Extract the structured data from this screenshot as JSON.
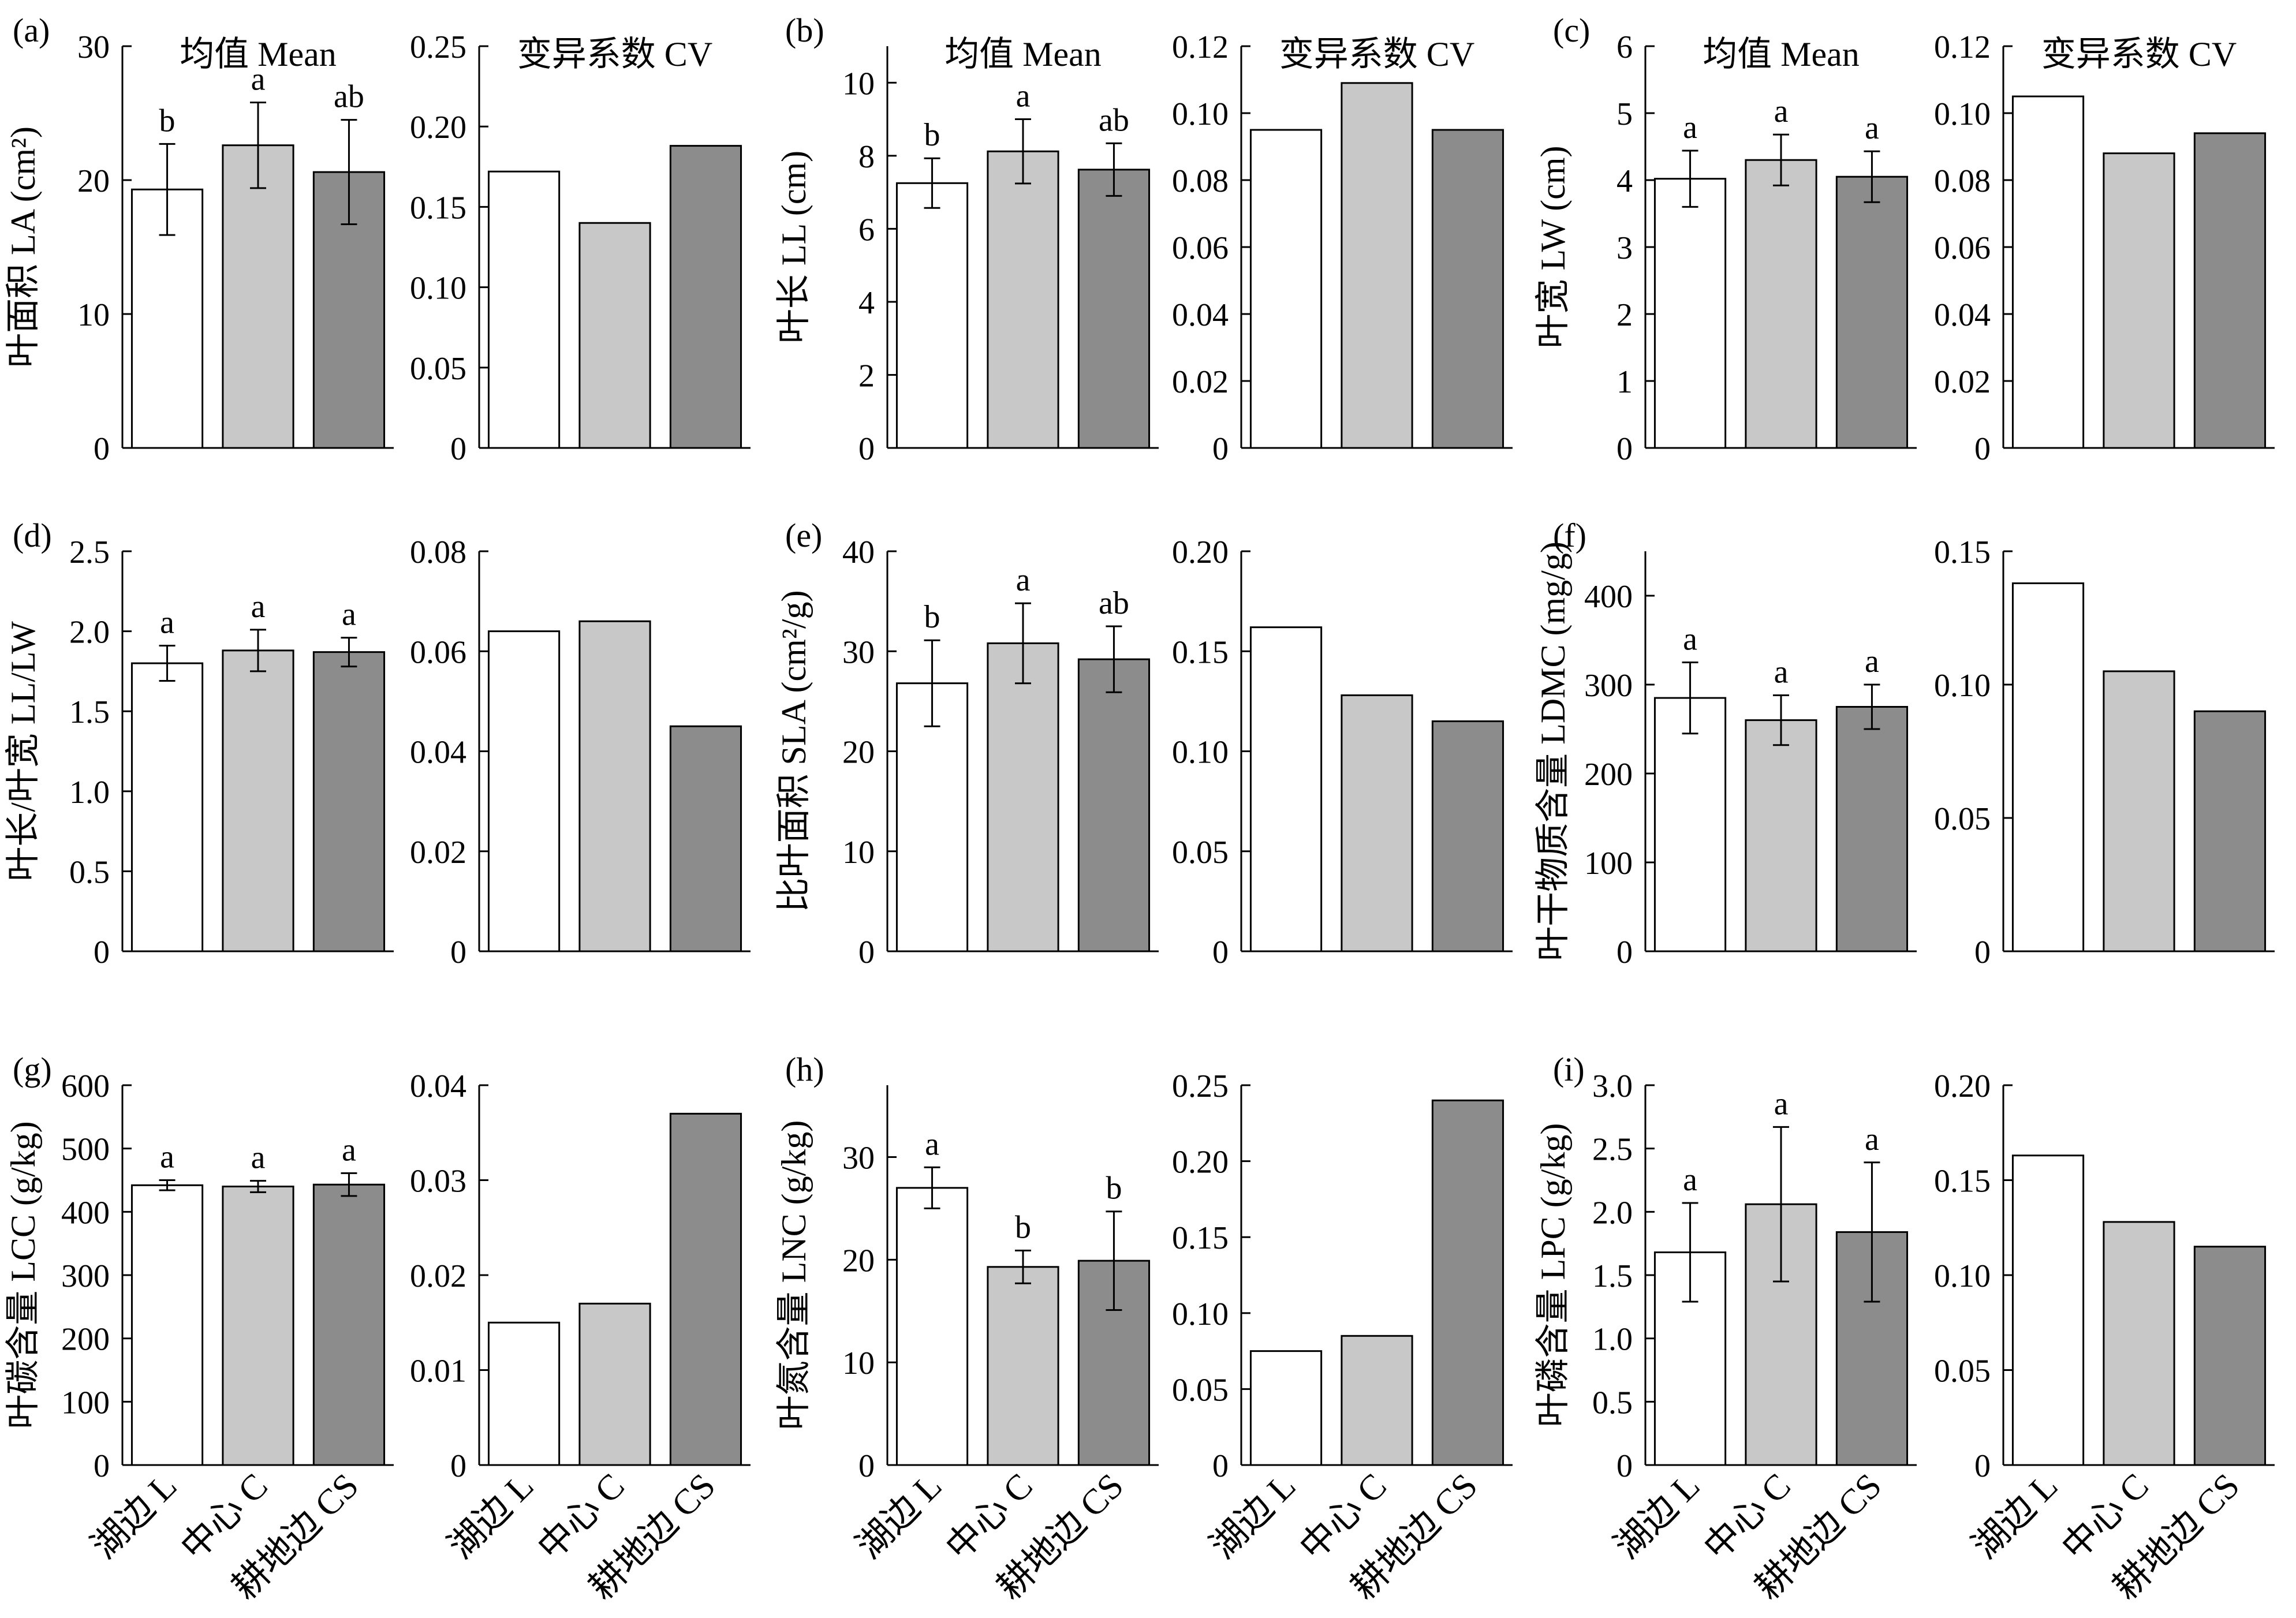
{
  "figure": {
    "colors": {
      "L": "#ffffff",
      "C": "#c8c8c8",
      "CS": "#8c8c8c",
      "axis": "#000000"
    }
  },
  "chart_data": [
    {
      "panel": "(a)",
      "type": "bar",
      "ylabel": "叶面积 LA (cm²)",
      "categories": [
        "湖边 L",
        "中心 C",
        "耕地边 CS"
      ],
      "mean": {
        "title": "均值 Mean",
        "ylim": [
          0,
          30
        ],
        "yticks": [
          0,
          10,
          20,
          30
        ],
        "values": [
          19.3,
          22.6,
          20.6
        ],
        "errors": [
          3.4,
          3.2,
          3.9
        ],
        "letters": [
          "b",
          "a",
          "ab"
        ]
      },
      "cv": {
        "title": "变异系数 CV",
        "ylim": [
          0,
          0.25
        ],
        "yticks": [
          0,
          0.05,
          0.1,
          0.15,
          0.2,
          0.25
        ],
        "values": [
          0.172,
          0.14,
          0.188
        ]
      }
    },
    {
      "panel": "(b)",
      "type": "bar",
      "ylabel": "叶长 LL (cm)",
      "categories": [
        "湖边 L",
        "中心 C",
        "耕地边 CS"
      ],
      "mean": {
        "title": "均值 Mean",
        "ylim": [
          0,
          11
        ],
        "yticks": [
          0,
          2,
          4,
          6,
          8,
          10
        ],
        "values": [
          7.25,
          8.12,
          7.62
        ],
        "errors": [
          0.68,
          0.88,
          0.72
        ],
        "letters": [
          "b",
          "a",
          "ab"
        ]
      },
      "cv": {
        "title": "变异系数 CV",
        "ylim": [
          0,
          0.12
        ],
        "yticks": [
          0,
          0.02,
          0.04,
          0.06,
          0.08,
          0.1,
          0.12
        ],
        "values": [
          0.095,
          0.109,
          0.095
        ]
      }
    },
    {
      "panel": "(c)",
      "type": "bar",
      "ylabel": "叶宽 LW (cm)",
      "categories": [
        "湖边 L",
        "中心 C",
        "耕地边 CS"
      ],
      "mean": {
        "title": "均值 Mean",
        "ylim": [
          0,
          6
        ],
        "yticks": [
          0,
          1,
          2,
          3,
          4,
          5,
          6
        ],
        "values": [
          4.02,
          4.3,
          4.05
        ],
        "errors": [
          0.42,
          0.38,
          0.38
        ],
        "letters": [
          "a",
          "a",
          "a"
        ]
      },
      "cv": {
        "title": "变异系数 CV",
        "ylim": [
          0,
          0.12
        ],
        "yticks": [
          0,
          0.02,
          0.04,
          0.06,
          0.08,
          0.1,
          0.12
        ],
        "values": [
          0.105,
          0.088,
          0.094
        ]
      }
    },
    {
      "panel": "(d)",
      "type": "bar",
      "ylabel": "叶长/叶宽 LL/LW",
      "categories": [
        "湖边 L",
        "中心 C",
        "耕地边 CS"
      ],
      "mean": {
        "title": "",
        "ylim": [
          0,
          2.5
        ],
        "yticks": [
          0,
          0.5,
          1.0,
          1.5,
          2.0,
          2.5
        ],
        "values": [
          1.8,
          1.88,
          1.87
        ],
        "errors": [
          0.11,
          0.13,
          0.09
        ],
        "letters": [
          "a",
          "a",
          "a"
        ]
      },
      "cv": {
        "title": "",
        "ylim": [
          0,
          0.08
        ],
        "yticks": [
          0,
          0.02,
          0.04,
          0.06,
          0.08
        ],
        "values": [
          0.064,
          0.066,
          0.045
        ]
      }
    },
    {
      "panel": "(e)",
      "type": "bar",
      "ylabel": "比叶面积 SLA (cm²/g)",
      "categories": [
        "湖边 L",
        "中心 C",
        "耕地边 CS"
      ],
      "mean": {
        "title": "",
        "ylim": [
          0,
          40
        ],
        "yticks": [
          0,
          10,
          20,
          30,
          40
        ],
        "values": [
          26.8,
          30.8,
          29.2
        ],
        "errors": [
          4.3,
          4.0,
          3.3
        ],
        "letters": [
          "b",
          "a",
          "ab"
        ]
      },
      "cv": {
        "title": "",
        "ylim": [
          0,
          0.2
        ],
        "yticks": [
          0,
          0.05,
          0.1,
          0.15,
          0.2
        ],
        "values": [
          0.162,
          0.128,
          0.115
        ]
      }
    },
    {
      "panel": "(f)",
      "type": "bar",
      "ylabel": "叶干物质含量 LDMC (mg/g)",
      "categories": [
        "湖边 L",
        "中心 C",
        "耕地边 CS"
      ],
      "mean": {
        "title": "",
        "ylim": [
          0,
          450
        ],
        "yticks": [
          0,
          100,
          200,
          300,
          400
        ],
        "values": [
          285,
          260,
          275
        ],
        "errors": [
          40,
          28,
          25
        ],
        "letters": [
          "a",
          "a",
          "a"
        ]
      },
      "cv": {
        "title": "",
        "ylim": [
          0,
          0.15
        ],
        "yticks": [
          0,
          0.05,
          0.1,
          0.15
        ],
        "values": [
          0.138,
          0.105,
          0.09
        ]
      }
    },
    {
      "panel": "(g)",
      "type": "bar",
      "ylabel": "叶碳含量 LCC (g/kg)",
      "categories": [
        "湖边 L",
        "中心 C",
        "耕地边 CS"
      ],
      "mean": {
        "title": "",
        "ylim": [
          0,
          600
        ],
        "yticks": [
          0,
          100,
          200,
          300,
          400,
          500,
          600
        ],
        "values": [
          442,
          440,
          443
        ],
        "errors": [
          8,
          9,
          18
        ],
        "letters": [
          "a",
          "a",
          "a"
        ]
      },
      "cv": {
        "title": "",
        "ylim": [
          0,
          0.04
        ],
        "yticks": [
          0,
          0.01,
          0.02,
          0.03,
          0.04
        ],
        "values": [
          0.015,
          0.017,
          0.037
        ]
      }
    },
    {
      "panel": "(h)",
      "type": "bar",
      "ylabel": "叶氮含量 LNC (g/kg)",
      "categories": [
        "湖边 L",
        "中心 C",
        "耕地边 CS"
      ],
      "mean": {
        "title": "",
        "ylim": [
          0,
          37
        ],
        "yticks": [
          0,
          10,
          20,
          30
        ],
        "values": [
          27.0,
          19.3,
          19.9
        ],
        "errors": [
          2.0,
          1.6,
          4.8
        ],
        "letters": [
          "a",
          "b",
          "b"
        ]
      },
      "cv": {
        "title": "",
        "ylim": [
          0,
          0.25
        ],
        "yticks": [
          0,
          0.05,
          0.1,
          0.15,
          0.2,
          0.25
        ],
        "values": [
          0.075,
          0.085,
          0.24
        ]
      }
    },
    {
      "panel": "(i)",
      "type": "bar",
      "ylabel": "叶磷含量 LPC (g/kg)",
      "categories": [
        "湖边 L",
        "中心 C",
        "耕地边 CS"
      ],
      "mean": {
        "title": "",
        "ylim": [
          0,
          3.0
        ],
        "yticks": [
          0,
          0.5,
          1.0,
          1.5,
          2.0,
          2.5,
          3.0
        ],
        "values": [
          1.68,
          2.06,
          1.84
        ],
        "errors": [
          0.39,
          0.61,
          0.55
        ],
        "letters": [
          "a",
          "a",
          "a"
        ]
      },
      "cv": {
        "title": "",
        "ylim": [
          0,
          0.2
        ],
        "yticks": [
          0,
          0.05,
          0.1,
          0.15,
          0.2
        ],
        "values": [
          0.163,
          0.128,
          0.115
        ]
      }
    }
  ]
}
